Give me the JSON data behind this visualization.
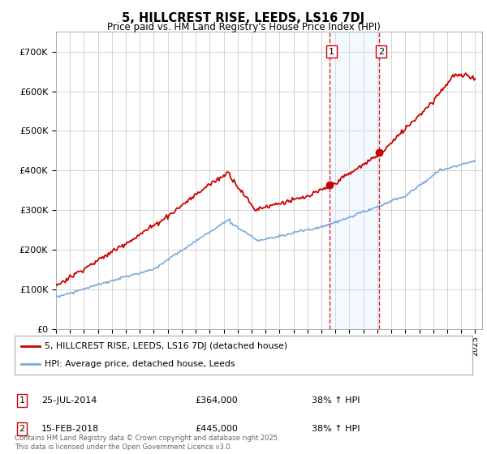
{
  "title": "5, HILLCREST RISE, LEEDS, LS16 7DJ",
  "subtitle": "Price paid vs. HM Land Registry's House Price Index (HPI)",
  "ylim": [
    0,
    750000
  ],
  "yticks": [
    0,
    100000,
    200000,
    300000,
    400000,
    500000,
    600000,
    700000
  ],
  "ytick_labels": [
    "£0",
    "£100K",
    "£200K",
    "£300K",
    "£400K",
    "£500K",
    "£600K",
    "£700K"
  ],
  "background_color": "#ffffff",
  "grid_color": "#cccccc",
  "sale1_date": 2014.56,
  "sale1_price": 364000,
  "sale2_date": 2018.12,
  "sale2_price": 445000,
  "legend_red": "5, HILLCREST RISE, LEEDS, LS16 7DJ (detached house)",
  "legend_blue": "HPI: Average price, detached house, Leeds",
  "footer": "Contains HM Land Registry data © Crown copyright and database right 2025.\nThis data is licensed under the Open Government Licence v3.0.",
  "red_color": "#cc0000",
  "blue_color": "#7aaadd",
  "shade_color": "#ddeeff"
}
